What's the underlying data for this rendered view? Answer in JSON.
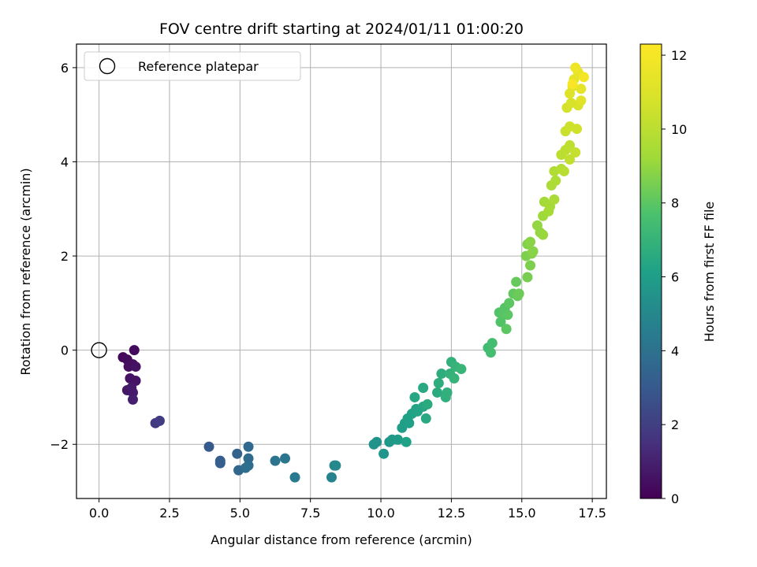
{
  "chart_data": {
    "type": "scatter",
    "title": "FOV centre drift starting at 2024/01/11 01:00:20",
    "xlabel": "Angular distance from reference (arcmin)",
    "ylabel": "Rotation from reference (arcmin)",
    "xlim": [
      -0.8,
      18.0
    ],
    "ylim": [
      -3.15,
      6.5
    ],
    "xticks": [
      0.0,
      2.5,
      5.0,
      7.5,
      10.0,
      12.5,
      15.0,
      17.5
    ],
    "xtick_labels": [
      "0.0",
      "2.5",
      "5.0",
      "7.5",
      "10.0",
      "12.5",
      "15.0",
      "17.5"
    ],
    "yticks": [
      -2,
      0,
      2,
      4,
      6
    ],
    "ytick_labels": [
      "−2",
      "0",
      "2",
      "4",
      "6"
    ],
    "grid": true,
    "legend": {
      "location": "upper-left",
      "entries": [
        {
          "label": "Reference platepar",
          "marker": "open-circle",
          "x": 0.0,
          "y": 0.0
        }
      ]
    },
    "colorbar": {
      "label": "Hours from first FF file",
      "colormap": "viridis",
      "range": [
        0,
        12.3
      ],
      "ticks": [
        0,
        2,
        4,
        6,
        8,
        10,
        12
      ],
      "tick_labels": [
        "0",
        "2",
        "4",
        "6",
        "8",
        "10",
        "12"
      ]
    },
    "points": [
      [
        0.85,
        -0.15,
        0.2
      ],
      [
        1.0,
        -0.2,
        0.3
      ],
      [
        1.05,
        -0.35,
        0.4
      ],
      [
        1.2,
        -0.3,
        0.4
      ],
      [
        1.25,
        0.0,
        0.3
      ],
      [
        1.1,
        -0.6,
        0.5
      ],
      [
        1.3,
        -0.35,
        0.5
      ],
      [
        1.3,
        -0.65,
        0.6
      ],
      [
        1.0,
        -0.85,
        0.7
      ],
      [
        1.2,
        -0.9,
        0.8
      ],
      [
        1.15,
        -0.8,
        0.8
      ],
      [
        1.2,
        -1.05,
        0.9
      ],
      [
        2.0,
        -1.55,
        1.8
      ],
      [
        2.15,
        -1.5,
        1.9
      ],
      [
        3.9,
        -2.05,
        3.0
      ],
      [
        4.3,
        -2.35,
        3.1
      ],
      [
        4.3,
        -2.4,
        3.2
      ],
      [
        4.9,
        -2.2,
        3.4
      ],
      [
        4.95,
        -2.55,
        3.5
      ],
      [
        5.3,
        -2.05,
        3.6
      ],
      [
        5.3,
        -2.3,
        3.7
      ],
      [
        5.3,
        -2.45,
        3.8
      ],
      [
        5.2,
        -2.5,
        3.9
      ],
      [
        6.25,
        -2.35,
        4.1
      ],
      [
        6.6,
        -2.3,
        4.2
      ],
      [
        6.95,
        -2.7,
        4.4
      ],
      [
        8.25,
        -2.7,
        4.8
      ],
      [
        8.35,
        -2.45,
        4.9
      ],
      [
        8.4,
        -2.45,
        5.0
      ],
      [
        9.75,
        -2.0,
        5.5
      ],
      [
        9.85,
        -1.95,
        5.5
      ],
      [
        10.1,
        -2.2,
        5.6
      ],
      [
        10.3,
        -1.95,
        5.7
      ],
      [
        10.4,
        -1.9,
        5.8
      ],
      [
        10.6,
        -1.9,
        5.9
      ],
      [
        10.75,
        -1.65,
        6.0
      ],
      [
        10.85,
        -1.55,
        6.0
      ],
      [
        10.95,
        -1.45,
        6.1
      ],
      [
        11.0,
        -1.55,
        6.1
      ],
      [
        10.9,
        -1.95,
        6.2
      ],
      [
        11.1,
        -1.35,
        6.2
      ],
      [
        11.25,
        -1.25,
        6.3
      ],
      [
        11.3,
        -1.3,
        6.3
      ],
      [
        11.2,
        -1.0,
        6.4
      ],
      [
        11.5,
        -1.2,
        6.4
      ],
      [
        11.5,
        -0.8,
        6.5
      ],
      [
        11.6,
        -1.45,
        6.5
      ],
      [
        11.65,
        -1.15,
        6.6
      ],
      [
        12.0,
        -0.9,
        6.6
      ],
      [
        12.05,
        -0.7,
        6.7
      ],
      [
        12.15,
        -0.5,
        6.7
      ],
      [
        12.35,
        -0.9,
        6.8
      ],
      [
        12.3,
        -1.0,
        6.8
      ],
      [
        12.45,
        -0.5,
        6.9
      ],
      [
        12.5,
        -0.25,
        6.9
      ],
      [
        12.6,
        -0.6,
        7.0
      ],
      [
        12.65,
        -0.35,
        7.0
      ],
      [
        12.85,
        -0.4,
        7.1
      ],
      [
        13.8,
        0.05,
        7.4
      ],
      [
        13.95,
        0.15,
        7.5
      ],
      [
        13.9,
        -0.05,
        7.5
      ],
      [
        14.2,
        0.8,
        7.8
      ],
      [
        14.25,
        0.6,
        7.8
      ],
      [
        14.35,
        0.75,
        7.9
      ],
      [
        14.4,
        0.9,
        7.9
      ],
      [
        14.5,
        0.75,
        8.0
      ],
      [
        14.45,
        0.45,
        8.0
      ],
      [
        14.55,
        1.0,
        8.0
      ],
      [
        14.7,
        1.2,
        8.1
      ],
      [
        14.8,
        1.45,
        8.2
      ],
      [
        14.85,
        1.15,
        8.2
      ],
      [
        14.9,
        1.2,
        8.3
      ],
      [
        15.2,
        1.55,
        8.5
      ],
      [
        15.15,
        2.0,
        8.6
      ],
      [
        15.3,
        1.8,
        8.6
      ],
      [
        15.2,
        2.25,
        8.7
      ],
      [
        15.35,
        2.05,
        8.7
      ],
      [
        15.3,
        2.3,
        8.8
      ],
      [
        15.4,
        2.1,
        8.8
      ],
      [
        15.55,
        2.65,
        9.0
      ],
      [
        15.65,
        2.5,
        9.0
      ],
      [
        15.75,
        2.45,
        9.1
      ],
      [
        15.75,
        2.85,
        9.2
      ],
      [
        15.8,
        3.15,
        9.3
      ],
      [
        15.95,
        2.95,
        9.3
      ],
      [
        16.0,
        3.05,
        9.4
      ],
      [
        16.05,
        3.5,
        9.5
      ],
      [
        16.15,
        3.2,
        9.5
      ],
      [
        16.2,
        3.6,
        9.6
      ],
      [
        16.15,
        3.8,
        9.7
      ],
      [
        16.4,
        3.85,
        9.8
      ],
      [
        16.5,
        3.8,
        9.9
      ],
      [
        16.4,
        4.15,
        10.0
      ],
      [
        16.55,
        4.25,
        10.0
      ],
      [
        16.7,
        4.35,
        10.1
      ],
      [
        16.7,
        4.05,
        10.2
      ],
      [
        16.9,
        4.2,
        10.3
      ],
      [
        16.55,
        4.65,
        10.4
      ],
      [
        16.7,
        4.75,
        10.5
      ],
      [
        16.95,
        4.7,
        10.6
      ],
      [
        16.6,
        5.15,
        10.7
      ],
      [
        16.75,
        5.25,
        10.8
      ],
      [
        17.0,
        5.2,
        10.9
      ],
      [
        16.7,
        5.45,
        11.0
      ],
      [
        16.8,
        5.6,
        11.1
      ],
      [
        17.1,
        5.3,
        11.2
      ],
      [
        16.85,
        5.75,
        11.3
      ],
      [
        17.1,
        5.55,
        11.4
      ],
      [
        17.0,
        5.9,
        11.5
      ],
      [
        16.9,
        6.0,
        11.7
      ],
      [
        17.2,
        5.8,
        11.9
      ],
      [
        16.8,
        5.65,
        12.1
      ]
    ]
  }
}
